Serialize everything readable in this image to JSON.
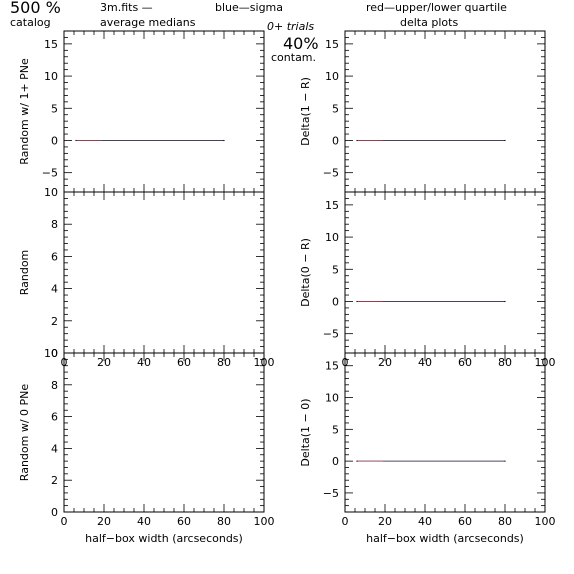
{
  "header": {
    "percent_label": "500 %",
    "catalog_label": "catalog",
    "file_label": "3m.fits  —",
    "medians_label": "average medians",
    "blue_label": "blue—sigma",
    "red_label": "red—upper/lower quartile",
    "trials_label": "0+ trials",
    "contam_value": "40%",
    "contam_label": "contam.",
    "delta_label": "delta plots"
  },
  "colors": {
    "blue": "#4a4ad8",
    "red": "#ee3a3a",
    "frame": "#000000",
    "line": "#000000"
  },
  "chart_data": [
    {
      "id": "left-top",
      "type": "line",
      "ylabel": "Random w/ 1+ PNe",
      "xlabel": "",
      "xlim": [
        0,
        100
      ],
      "ylim": [
        -8,
        17
      ],
      "xticks": [],
      "yticks": [
        -5,
        0,
        5,
        10,
        15
      ],
      "series": [
        {
          "x": [
            6,
            80
          ],
          "y": [
            0,
            0
          ]
        }
      ]
    },
    {
      "id": "right-top",
      "type": "line",
      "ylabel": "Delta(1 − R)",
      "xlabel": "",
      "xlim": [
        0,
        100
      ],
      "ylim": [
        -8,
        17
      ],
      "xticks": [],
      "yticks": [
        -5,
        0,
        5,
        10,
        15
      ],
      "series": [
        {
          "x": [
            6,
            80
          ],
          "y": [
            0,
            0
          ]
        }
      ]
    },
    {
      "id": "left-mid",
      "type": "line",
      "ylabel": "Random",
      "xlabel": "",
      "xlim": [
        0,
        100
      ],
      "ylim": [
        0,
        10
      ],
      "xticks": [
        0,
        20,
        40,
        60,
        80,
        100
      ],
      "yticks": [
        0,
        2,
        4,
        6,
        8,
        10
      ],
      "series": []
    },
    {
      "id": "right-mid",
      "type": "line",
      "ylabel": "Delta(0 − R)",
      "xlabel": "",
      "xlim": [
        0,
        100
      ],
      "ylim": [
        -8,
        17
      ],
      "xticks": [
        0,
        20,
        40,
        60,
        80,
        100
      ],
      "yticks": [
        -5,
        0,
        5,
        10,
        15
      ],
      "series": [
        {
          "x": [
            6,
            80
          ],
          "y": [
            0,
            0
          ]
        }
      ]
    },
    {
      "id": "left-bot",
      "type": "line",
      "ylabel": "Random w/ 0 PNe",
      "xlabel": "half−box width (arcseconds)",
      "xlim": [
        0,
        100
      ],
      "ylim": [
        0,
        10
      ],
      "xticks": [
        0,
        20,
        40,
        60,
        80,
        100
      ],
      "yticks": [
        0,
        2,
        4,
        6,
        8,
        10
      ],
      "series": []
    },
    {
      "id": "right-bot",
      "type": "line",
      "ylabel": "Delta(1 − 0)",
      "xlabel": "half−box width (arcseconds)",
      "xlim": [
        0,
        100
      ],
      "ylim": [
        -8,
        17
      ],
      "xticks": [
        0,
        20,
        40,
        60,
        80,
        100
      ],
      "yticks": [
        -5,
        0,
        5,
        10,
        15
      ],
      "series": [
        {
          "x": [
            6,
            80
          ],
          "y": [
            0,
            0
          ]
        }
      ]
    }
  ]
}
